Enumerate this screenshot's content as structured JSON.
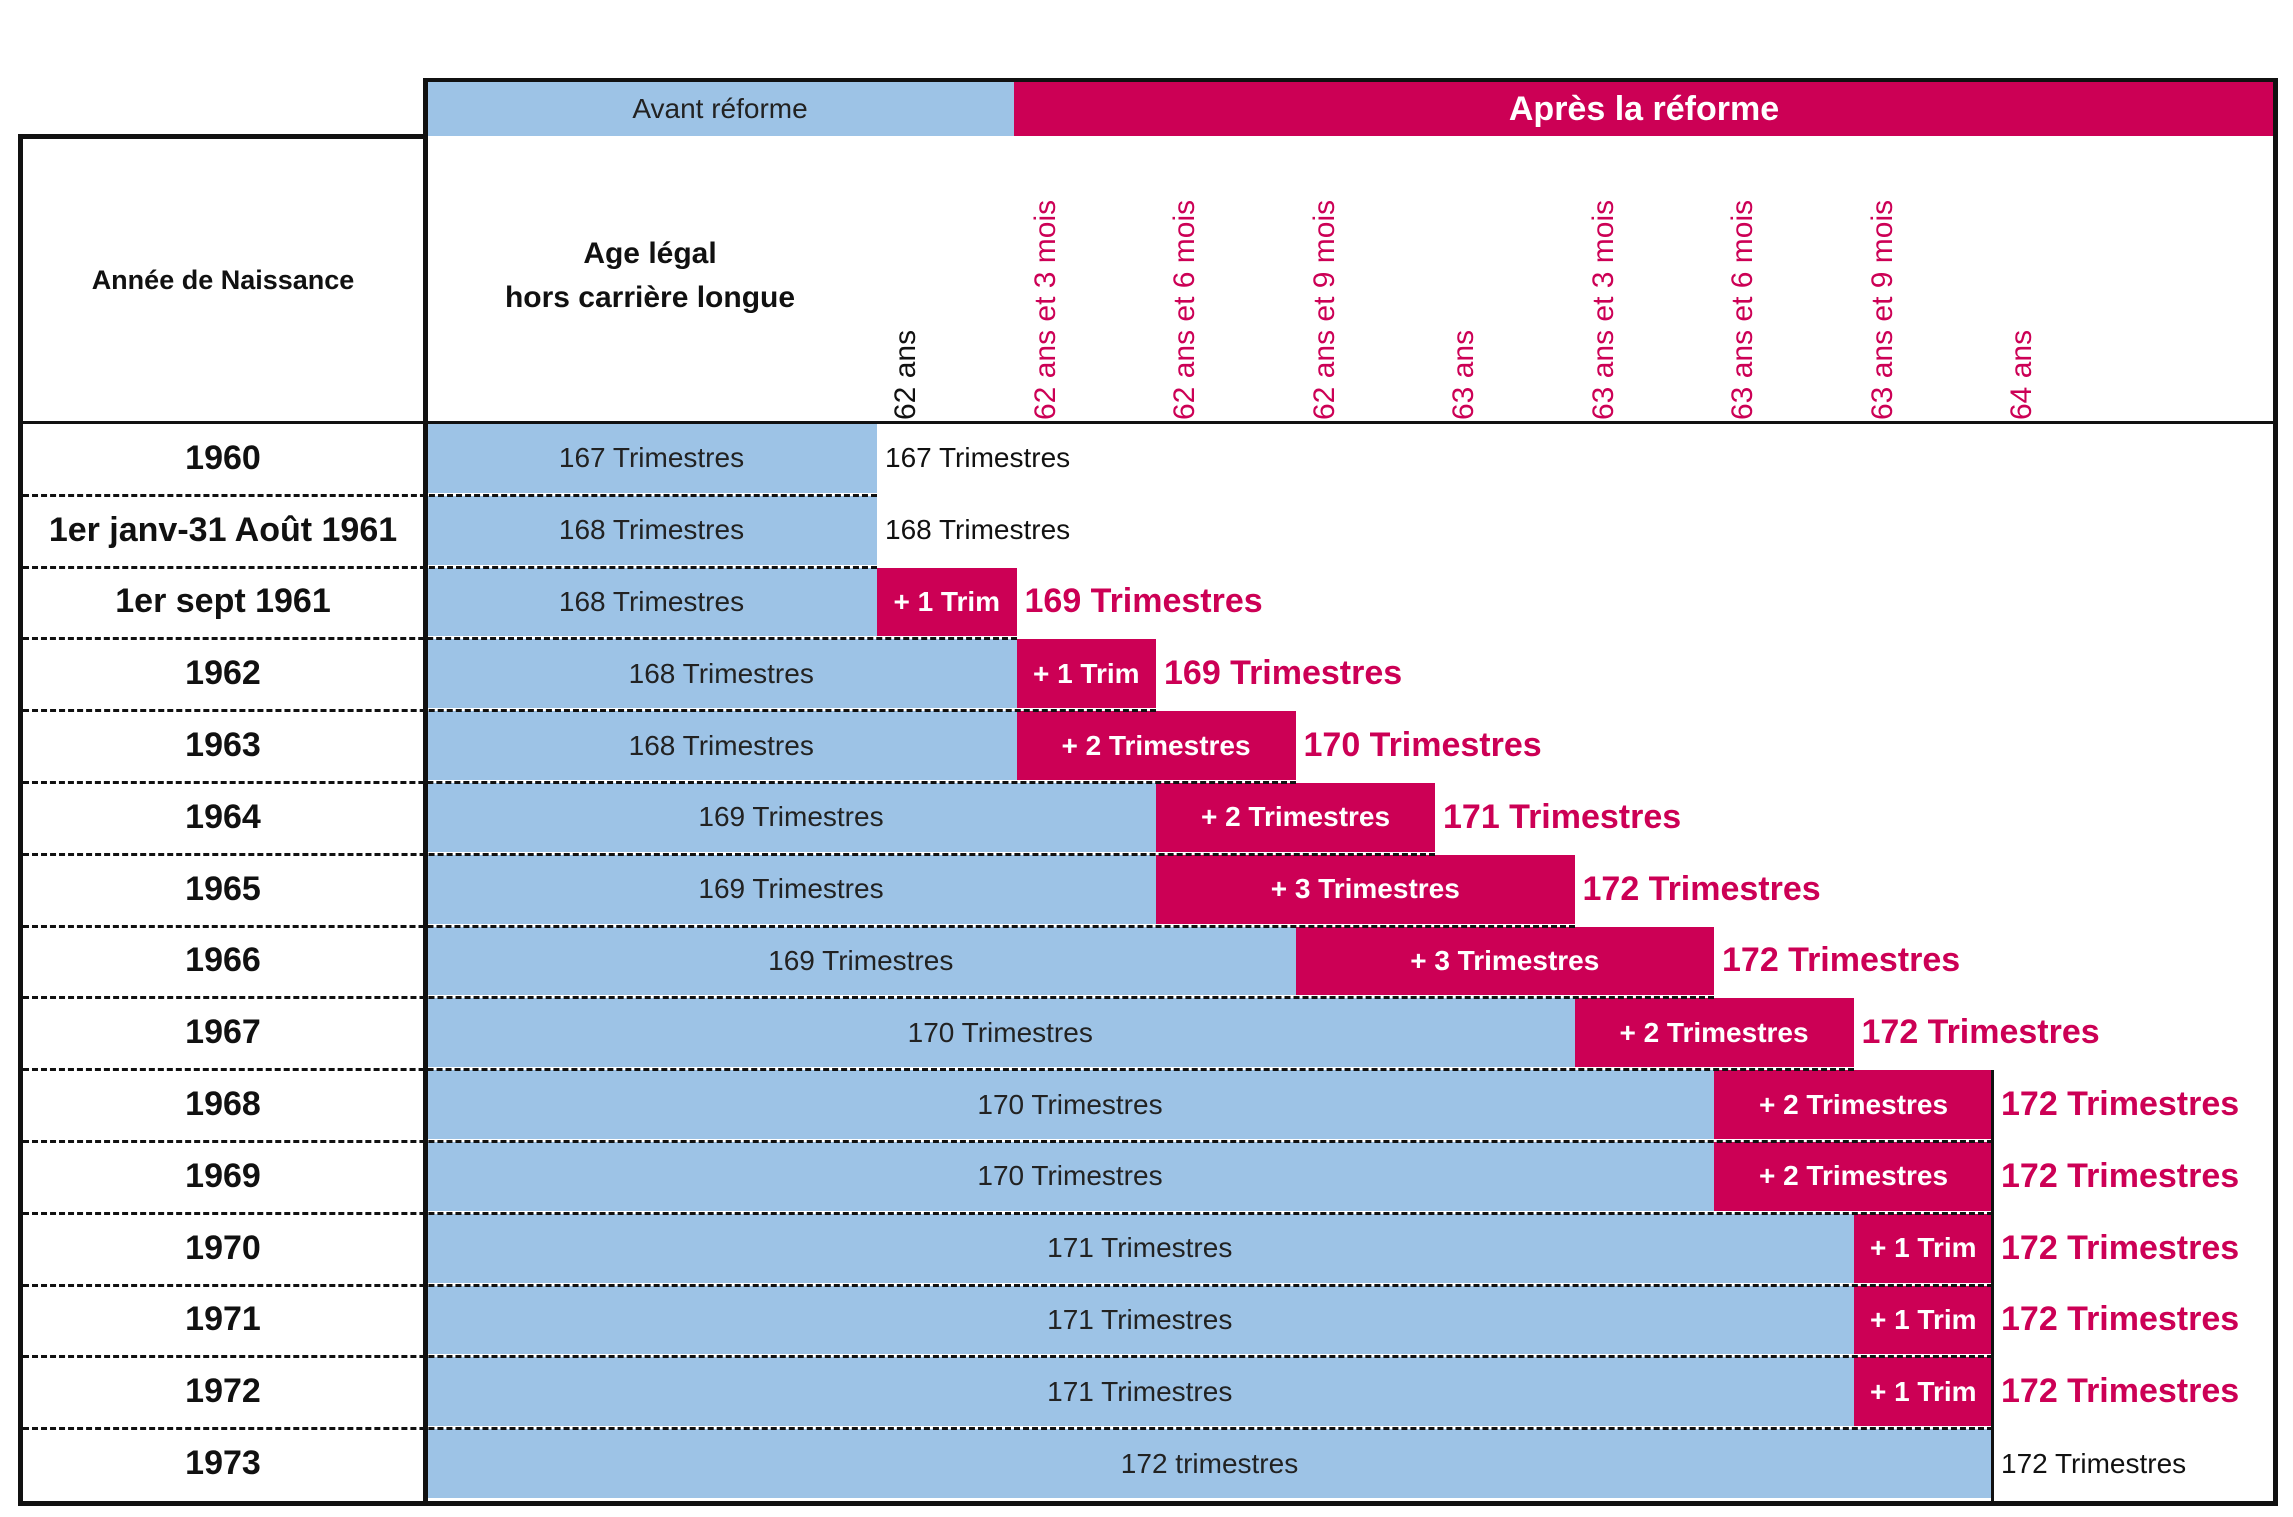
{
  "chart_data": {
    "type": "table",
    "header": {
      "before_label": "Avant réforme",
      "after_label": "Après la réforme",
      "birth_year_title": "Année de Naissance",
      "legal_age_title_line1": "Age légal",
      "legal_age_title_line2": "hors carrière longue"
    },
    "age_columns": [
      {
        "label": "62 ans",
        "style": "plain"
      },
      {
        "label": "62 ans et 3 mois",
        "style": "accent"
      },
      {
        "label": "62 ans et 6 mois",
        "style": "accent"
      },
      {
        "label": "62 ans et 9 mois",
        "style": "accent"
      },
      {
        "label": "63 ans",
        "style": "accent"
      },
      {
        "label": "63 ans et 3 mois",
        "style": "accent"
      },
      {
        "label": "63 ans et 6 mois",
        "style": "accent"
      },
      {
        "label": "63 ans et 9 mois",
        "style": "accent"
      },
      {
        "label": "64 ans",
        "style": "accent"
      }
    ],
    "rows": [
      {
        "year": "1960",
        "age_index": 0,
        "before": "167 Trimestres",
        "added": "",
        "total": "167 Trimestres",
        "total_style": "plain"
      },
      {
        "year": "1er janv-31 Août 1961",
        "age_index": 0,
        "before": "168 Trimestres",
        "added": "",
        "total": "168 Trimestres",
        "total_style": "plain"
      },
      {
        "year": "1er sept 1961",
        "age_index": 0,
        "before": "168 Trimestres",
        "added": "+ 1 Trim",
        "total": "169 Trimestres",
        "total_style": "accent"
      },
      {
        "year": "1962",
        "age_index": 1,
        "before": "168 Trimestres",
        "added": "+ 1 Trim",
        "total": "169 Trimestres",
        "total_style": "accent"
      },
      {
        "year": "1963",
        "age_index": 1,
        "before": "168 Trimestres",
        "added": "+ 2 Trimestres",
        "total": "170 Trimestres",
        "total_style": "accent"
      },
      {
        "year": "1964",
        "age_index": 2,
        "before": "169 Trimestres",
        "added": "+ 2 Trimestres",
        "total": "171 Trimestres",
        "total_style": "accent"
      },
      {
        "year": "1965",
        "age_index": 2,
        "before": "169 Trimestres",
        "added": "+ 3 Trimestres",
        "total": "172 Trimestres",
        "total_style": "accent"
      },
      {
        "year": "1966",
        "age_index": 3,
        "before": "169 Trimestres",
        "added": "+ 3 Trimestres",
        "total": "172 Trimestres",
        "total_style": "accent"
      },
      {
        "year": "1967",
        "age_index": 5,
        "before": "170 Trimestres",
        "added": "+ 2 Trimestres",
        "total": "172 Trimestres",
        "total_style": "accent"
      },
      {
        "year": "1968",
        "age_index": 6,
        "before": "170 Trimestres",
        "added": "+ 2 Trimestres",
        "total": "172 Trimestres",
        "total_style": "accent"
      },
      {
        "year": "1969",
        "age_index": 6,
        "before": "170 Trimestres",
        "added": "+ 2 Trimestres",
        "total": "172 Trimestres",
        "total_style": "accent"
      },
      {
        "year": "1970",
        "age_index": 7,
        "before": "171 Trimestres",
        "added": "+ 1 Trim",
        "total": "172 Trimestres",
        "total_style": "accent"
      },
      {
        "year": "1971",
        "age_index": 7,
        "before": "171 Trimestres",
        "added": "+ 1 Trim",
        "total": "172 Trimestres",
        "total_style": "accent"
      },
      {
        "year": "1972",
        "age_index": 7,
        "before": "171 Trimestres",
        "added": "+ 1 Trim",
        "total": "172 Trimestres",
        "total_style": "accent"
      },
      {
        "year": "1973",
        "age_index": 8,
        "before": "172 trimestres",
        "added": "",
        "total": "172 Trimestres",
        "total_style": "plain"
      }
    ],
    "colors": {
      "before": "#9dc3e6",
      "after": "#cc0055",
      "text": "#111111"
    }
  }
}
